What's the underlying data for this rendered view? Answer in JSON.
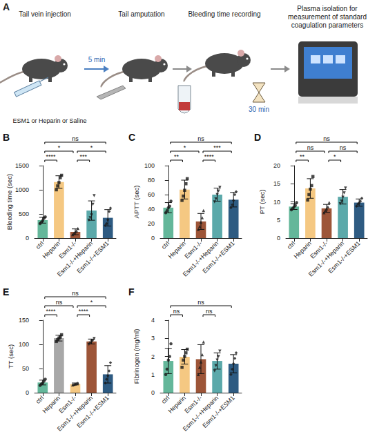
{
  "panel_a": {
    "letter": "A",
    "steps": [
      "Tail vein injection",
      "Tail amputation",
      "Bleeding time recording",
      "Plasma isolation for measurement of standard coagulation parameters"
    ],
    "injection": "ESM1 or Heparin or Saline",
    "interval": "5 min",
    "recording_time": "30 min"
  },
  "chart_data": [
    {
      "type": "bar",
      "panel": "B",
      "y_label": "Bleeding time (sec)",
      "categories": [
        "ctrl",
        "Heparin",
        "Esm1-/-",
        "Esm1-/-+Heparin",
        "Esm1-/-+ESM1"
      ],
      "values": [
        370,
        1160,
        130,
        570,
        420
      ],
      "errors": [
        60,
        130,
        60,
        200,
        170
      ],
      "points": [
        [
          300,
          330,
          360,
          410,
          440
        ],
        [
          1000,
          1080,
          1150,
          1250,
          1300
        ],
        [
          70,
          100,
          130,
          150,
          200
        ],
        [
          370,
          420,
          480,
          700,
          880
        ],
        [
          260,
          300,
          380,
          550,
          620
        ]
      ],
      "colors": [
        "#64b79a",
        "#f5c882",
        "#9d5538",
        "#5ba9aa",
        "#2e5b82"
      ],
      "ylim": [
        0,
        1500
      ],
      "yticks": [
        0,
        500,
        1000,
        1500
      ],
      "grid": false,
      "significance": [
        {
          "from": "ctrl",
          "to": "Heparin",
          "label": "****"
        },
        {
          "from": "Esm1-/-",
          "to": "Esm1-/-+Heparin",
          "label": "***"
        },
        {
          "from": "ctrl",
          "to": "Esm1-/-",
          "label": "*"
        },
        {
          "from": "Esm1-/-",
          "to": "Esm1-/-+ESM1",
          "label": "*"
        },
        {
          "from": "ctrl",
          "to": "Esm1-/-+ESM1",
          "label": "ns"
        }
      ]
    },
    {
      "type": "bar",
      "panel": "C",
      "y_label": "APTT (sec)",
      "categories": [
        "ctrl",
        "Heparin",
        "Esm1-/-",
        "Esm1-/-+Heparin",
        "Esm1-/-+ESM1"
      ],
      "values": [
        42,
        67,
        23,
        60,
        53
      ],
      "errors": [
        7,
        13,
        11,
        9,
        10
      ],
      "points": [
        [
          35,
          38,
          42,
          44,
          51
        ],
        [
          52,
          58,
          66,
          75,
          82
        ],
        [
          12,
          16,
          22,
          28,
          38
        ],
        [
          50,
          54,
          60,
          65,
          70
        ],
        [
          42,
          46,
          52,
          60,
          64
        ]
      ],
      "colors": [
        "#64b79a",
        "#f5c882",
        "#9d5538",
        "#5ba9aa",
        "#2e5b82"
      ],
      "ylim": [
        0,
        100
      ],
      "yticks": [
        0,
        20,
        40,
        60,
        80,
        100
      ],
      "grid": false,
      "significance": [
        {
          "from": "ctrl",
          "to": "Heparin",
          "label": "**"
        },
        {
          "from": "Esm1-/-",
          "to": "Esm1-/-+Heparin",
          "label": "****"
        },
        {
          "from": "ctrl",
          "to": "Esm1-/-",
          "label": "*"
        },
        {
          "from": "Esm1-/-",
          "to": "Esm1-/-+ESM1",
          "label": "***"
        },
        {
          "from": "ctrl",
          "to": "Esm1-/-+ESM1",
          "label": "ns"
        }
      ]
    },
    {
      "type": "bar",
      "panel": "D",
      "y_label": "PT (sec)",
      "categories": [
        "ctrl",
        "Heparin",
        "Esm1-/-",
        "Esm1-/-+Heparin",
        "Esm1-/-+ESM1"
      ],
      "values": [
        8.7,
        13.7,
        8.2,
        11.4,
        9.8
      ],
      "errors": [
        0.8,
        2.7,
        1.1,
        2,
        1
      ],
      "points": [
        [
          7.8,
          8.2,
          8.6,
          9,
          9.8
        ],
        [
          10.5,
          12,
          13.5,
          14.5,
          17
        ],
        [
          7,
          7.6,
          8.1,
          8.6,
          9.8
        ],
        [
          9.5,
          10.2,
          11.3,
          12.5,
          13.8
        ],
        [
          8.8,
          9.4,
          9.7,
          10.2,
          11
        ]
      ],
      "colors": [
        "#64b79a",
        "#f5c882",
        "#9d5538",
        "#5ba9aa",
        "#2e5b82"
      ],
      "ylim": [
        0,
        20
      ],
      "yticks": [
        0,
        5,
        10,
        15,
        20
      ],
      "grid": false,
      "significance": [
        {
          "from": "ctrl",
          "to": "Heparin",
          "label": "**"
        },
        {
          "from": "Esm1-/-",
          "to": "Esm1-/-+Heparin",
          "label": "*"
        },
        {
          "from": "ctrl",
          "to": "Esm1-/-",
          "label": "ns"
        },
        {
          "from": "Esm1-/-",
          "to": "Esm1-/-+ESM1",
          "label": "ns"
        },
        {
          "from": "ctrl",
          "to": "Esm1-/-+ESM1",
          "label": "ns"
        }
      ]
    },
    {
      "type": "bar",
      "panel": "E",
      "y_label": "TT (sec)",
      "categories": [
        "ctrl",
        "Heparin",
        "Esm1-/-",
        "Esm1-/-+Heparin",
        "Esm1-/-+ESM1"
      ],
      "values": [
        21,
        113,
        18,
        106,
        38
      ],
      "errors": [
        5,
        6,
        2,
        5,
        18
      ],
      "points": [
        [
          15,
          18,
          20,
          24,
          28
        ],
        [
          106,
          110,
          113,
          115,
          120
        ],
        [
          16,
          17,
          18,
          19,
          20
        ],
        [
          100,
          103,
          106,
          108,
          112
        ],
        [
          20,
          28,
          35,
          45,
          62
        ]
      ],
      "colors": [
        "#64b79a",
        "#a8a8a8",
        "#f5c882",
        "#9d5538",
        "#2e5b82"
      ],
      "ylim": [
        0,
        150
      ],
      "yticks": [
        0,
        50,
        100,
        150
      ],
      "grid": false,
      "significance": [
        {
          "from": "ctrl",
          "to": "Heparin",
          "label": "****"
        },
        {
          "from": "Esm1-/-",
          "to": "Esm1-/-+Heparin",
          "label": "****"
        },
        {
          "from": "ctrl",
          "to": "Esm1-/-",
          "label": "ns"
        },
        {
          "from": "Esm1-/-",
          "to": "Esm1-/-+ESM1",
          "label": "*"
        },
        {
          "from": "ctrl",
          "to": "Esm1-/-+ESM1",
          "label": "ns"
        }
      ]
    },
    {
      "type": "bar",
      "panel": "F",
      "y_label": "Fibrinogen (mg/ml)",
      "categories": [
        "ctrl",
        "Heparin",
        "Esm1-/-",
        "Esm1-/-+Heparin",
        "Esm1-/-+ESM1"
      ],
      "values": [
        1.75,
        1.98,
        1.85,
        1.75,
        1.6
      ],
      "errors": [
        0.7,
        0.4,
        0.8,
        0.45,
        0.5
      ],
      "points": [
        [
          1,
          1.3,
          1.8,
          2,
          2.7
        ],
        [
          1.4,
          1.8,
          2,
          2.2,
          2.4
        ],
        [
          1,
          1.4,
          1.7,
          2.1,
          2.8
        ],
        [
          1.2,
          1.5,
          1.8,
          2,
          2.3
        ],
        [
          1,
          1.3,
          1.6,
          1.9,
          2.2
        ]
      ],
      "colors": [
        "#64b79a",
        "#f5c882",
        "#9d5538",
        "#5ba9aa",
        "#2e5b82"
      ],
      "ylim": [
        0,
        4
      ],
      "yticks": [
        0,
        1,
        2,
        3,
        4
      ],
      "grid": false,
      "significance": [
        {
          "from": "ctrl",
          "to": "Heparin",
          "label": "ns"
        },
        {
          "from": "Esm1-/-",
          "to": "Esm1-/-+Heparin",
          "label": "ns"
        },
        {
          "from": "ctrl",
          "to": "Esm1-/-+ESM1",
          "label": "ns"
        }
      ]
    }
  ]
}
